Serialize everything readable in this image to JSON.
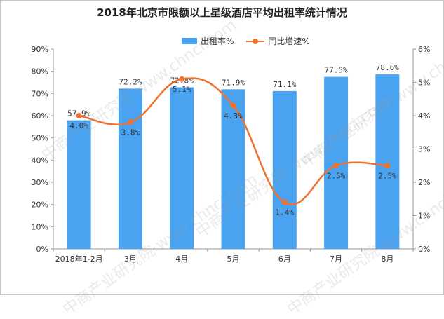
{
  "chart_data": {
    "type": "bar+line",
    "title": "2018年北京市限额以上星级酒店平均出租率统计情况",
    "categories": [
      "2018年1-2月",
      "3月",
      "4月",
      "5月",
      "6月",
      "7月",
      "8月"
    ],
    "series": [
      {
        "name": "出租率%",
        "type": "bar",
        "axis": "left",
        "values": [
          57.9,
          72.2,
          72.8,
          71.9,
          71.1,
          77.5,
          78.6
        ],
        "labels": [
          "57.9%",
          "72.2%",
          "72.8%",
          "71.9%",
          "71.1%",
          "77.5%",
          "78.6%"
        ]
      },
      {
        "name": "同比增速%",
        "type": "line",
        "axis": "right",
        "values": [
          4.0,
          3.8,
          5.1,
          4.3,
          1.4,
          2.5,
          2.5
        ],
        "labels": [
          "4.0%",
          "3.8%",
          "5.1%",
          "4.3%",
          "1.4%",
          "2.5%",
          "2.5%"
        ]
      }
    ],
    "y_left": {
      "ylim": [
        0,
        90
      ],
      "ticks": [
        "0%",
        "10%",
        "20%",
        "30%",
        "40%",
        "50%",
        "60%",
        "70%",
        "80%",
        "90%"
      ]
    },
    "y_right": {
      "ylim": [
        0,
        6
      ],
      "ticks": [
        "0%",
        "1%",
        "2%",
        "3%",
        "4%",
        "5%",
        "6%"
      ]
    },
    "grid": false,
    "legend": "top-center",
    "colors": {
      "bar": "#4aa3f0",
      "line": "#f07030"
    }
  },
  "watermark": "中商产业研究院 www.chnci.com"
}
